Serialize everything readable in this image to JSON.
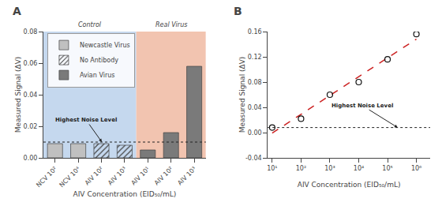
{
  "chart_data": [
    {
      "type": "bar",
      "title": "A",
      "categories": [
        "NCV 10²",
        "NCV 10⁴",
        "AIV 10²",
        "AIV 10³",
        "AIV 10¹",
        "AIV 10²",
        "AIV 10³"
      ],
      "series": [
        {
          "name": "Newcastle Virus",
          "color": "#c0c0c0",
          "values": [
            0.009,
            0.009,
            null,
            null,
            null,
            null,
            null
          ]
        },
        {
          "name": "No Antibody",
          "color": "#d8d8d8",
          "marker": "hatch",
          "values": [
            null,
            null,
            0.009,
            0.008,
            null,
            null,
            null
          ]
        },
        {
          "name": "Avian Virus",
          "color": "#7a7a7a",
          "values": [
            null,
            null,
            null,
            null,
            0.005,
            0.016,
            0.058
          ]
        }
      ],
      "regions": [
        {
          "label": "Control",
          "count": 4,
          "color": "#c5d8ee"
        },
        {
          "label": "Real Virus",
          "count": 3,
          "color": "#f2c4b0"
        }
      ],
      "reference_lines": [
        {
          "y": 0.01,
          "line_style": "dotted",
          "color": "#222222",
          "annotation": "Highest Noise Level"
        }
      ],
      "xlabel": "AIV Concentration (EID₅₀/mL)",
      "ylabel": "Measured Signal (ΔV)",
      "ylim": [
        0,
        0.08
      ],
      "yticks": [
        {
          "value": 0,
          "label": "0.00"
        },
        0.02,
        0.04,
        0.06,
        0.08
      ],
      "grid": false,
      "legend": "upper left"
    },
    {
      "type": "scatter",
      "title": "B",
      "x": [
        10,
        100,
        1000,
        10000,
        100000,
        1000000
      ],
      "series": [
        {
          "type": "line",
          "color": "#cc2222",
          "line_style": "dashed",
          "values": [
            -0.000761904762,
            0.0290095238,
            0.0587809524,
            0.088552381,
            0.1183238095,
            0.1480952381
          ]
        },
        {
          "type": "scatter",
          "color": "#111111",
          "marker": "circle-open",
          "values": [
            0.008,
            0.022,
            0.06,
            0.08,
            0.116,
            0.156
          ]
        }
      ],
      "reference_lines": [
        {
          "y": 0.008,
          "line_style": "dotted",
          "color": "#222222",
          "annotation": "Highest Noise Level"
        }
      ],
      "xlabel": "AIV Concentration (EID₅₀/mL)",
      "ylabel": "Measured Signal (ΔV)",
      "log": "x",
      "xlim": [
        7,
        3000000
      ],
      "xticks": [
        {
          "value": 10,
          "label": "10¹"
        },
        {
          "value": 100,
          "label": "10²"
        },
        {
          "value": 1000,
          "label": "10³"
        },
        {
          "value": 10000,
          "label": "10⁴"
        },
        {
          "value": 100000,
          "label": "10⁵"
        },
        {
          "value": 1000000,
          "label": "10⁶"
        }
      ],
      "ylim": [
        -0.04,
        0.16
      ],
      "yticks": [
        {
          "value": -0.04,
          "label": "-0.04"
        },
        {
          "value": 0,
          "label": "0.00"
        },
        0.04,
        0.08,
        0.12,
        0.16
      ],
      "grid": false
    }
  ]
}
